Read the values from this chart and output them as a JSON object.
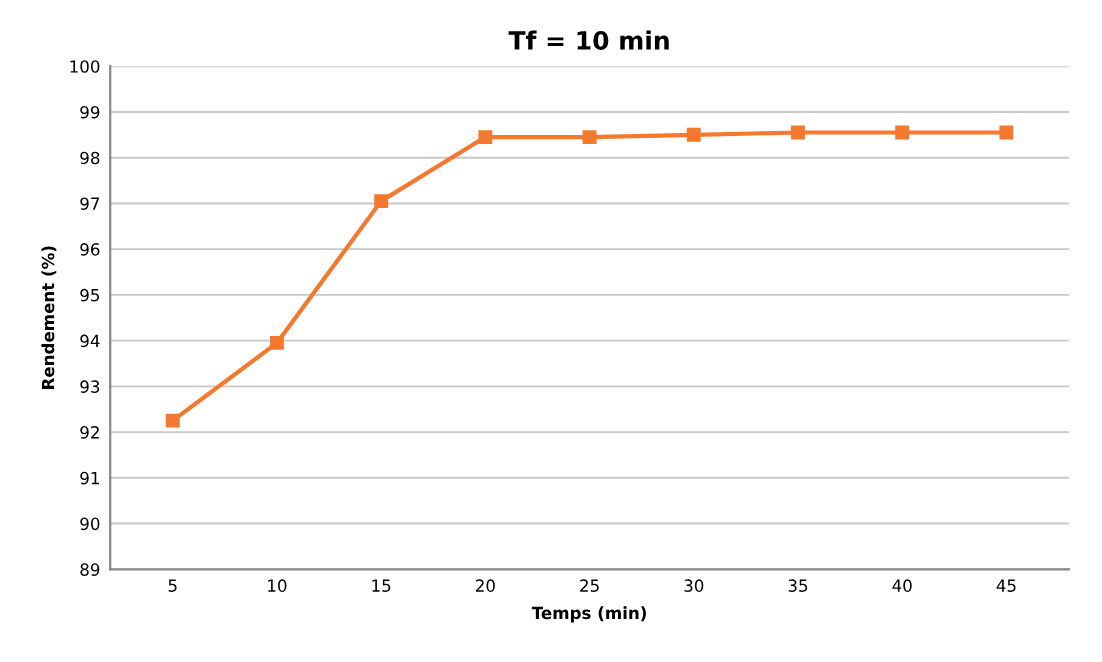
{
  "chart_data": {
    "type": "line",
    "title": "Tf = 10 min",
    "xlabel": "Temps (min)",
    "ylabel": "Rendement (%)",
    "categories": [
      "5",
      "10",
      "15",
      "20",
      "25",
      "30",
      "35",
      "40",
      "45"
    ],
    "series": [
      {
        "color": "#f4782e",
        "values": [
          92.25,
          93.95,
          97.05,
          98.45,
          98.45,
          98.5,
          98.55,
          98.55,
          98.55
        ]
      }
    ],
    "ylim": [
      89,
      100
    ],
    "yticks": [
      89,
      90,
      91,
      92,
      93,
      94,
      95,
      96,
      97,
      98,
      99,
      100
    ],
    "grid": "y",
    "marker": "square",
    "line_style": "solid"
  }
}
